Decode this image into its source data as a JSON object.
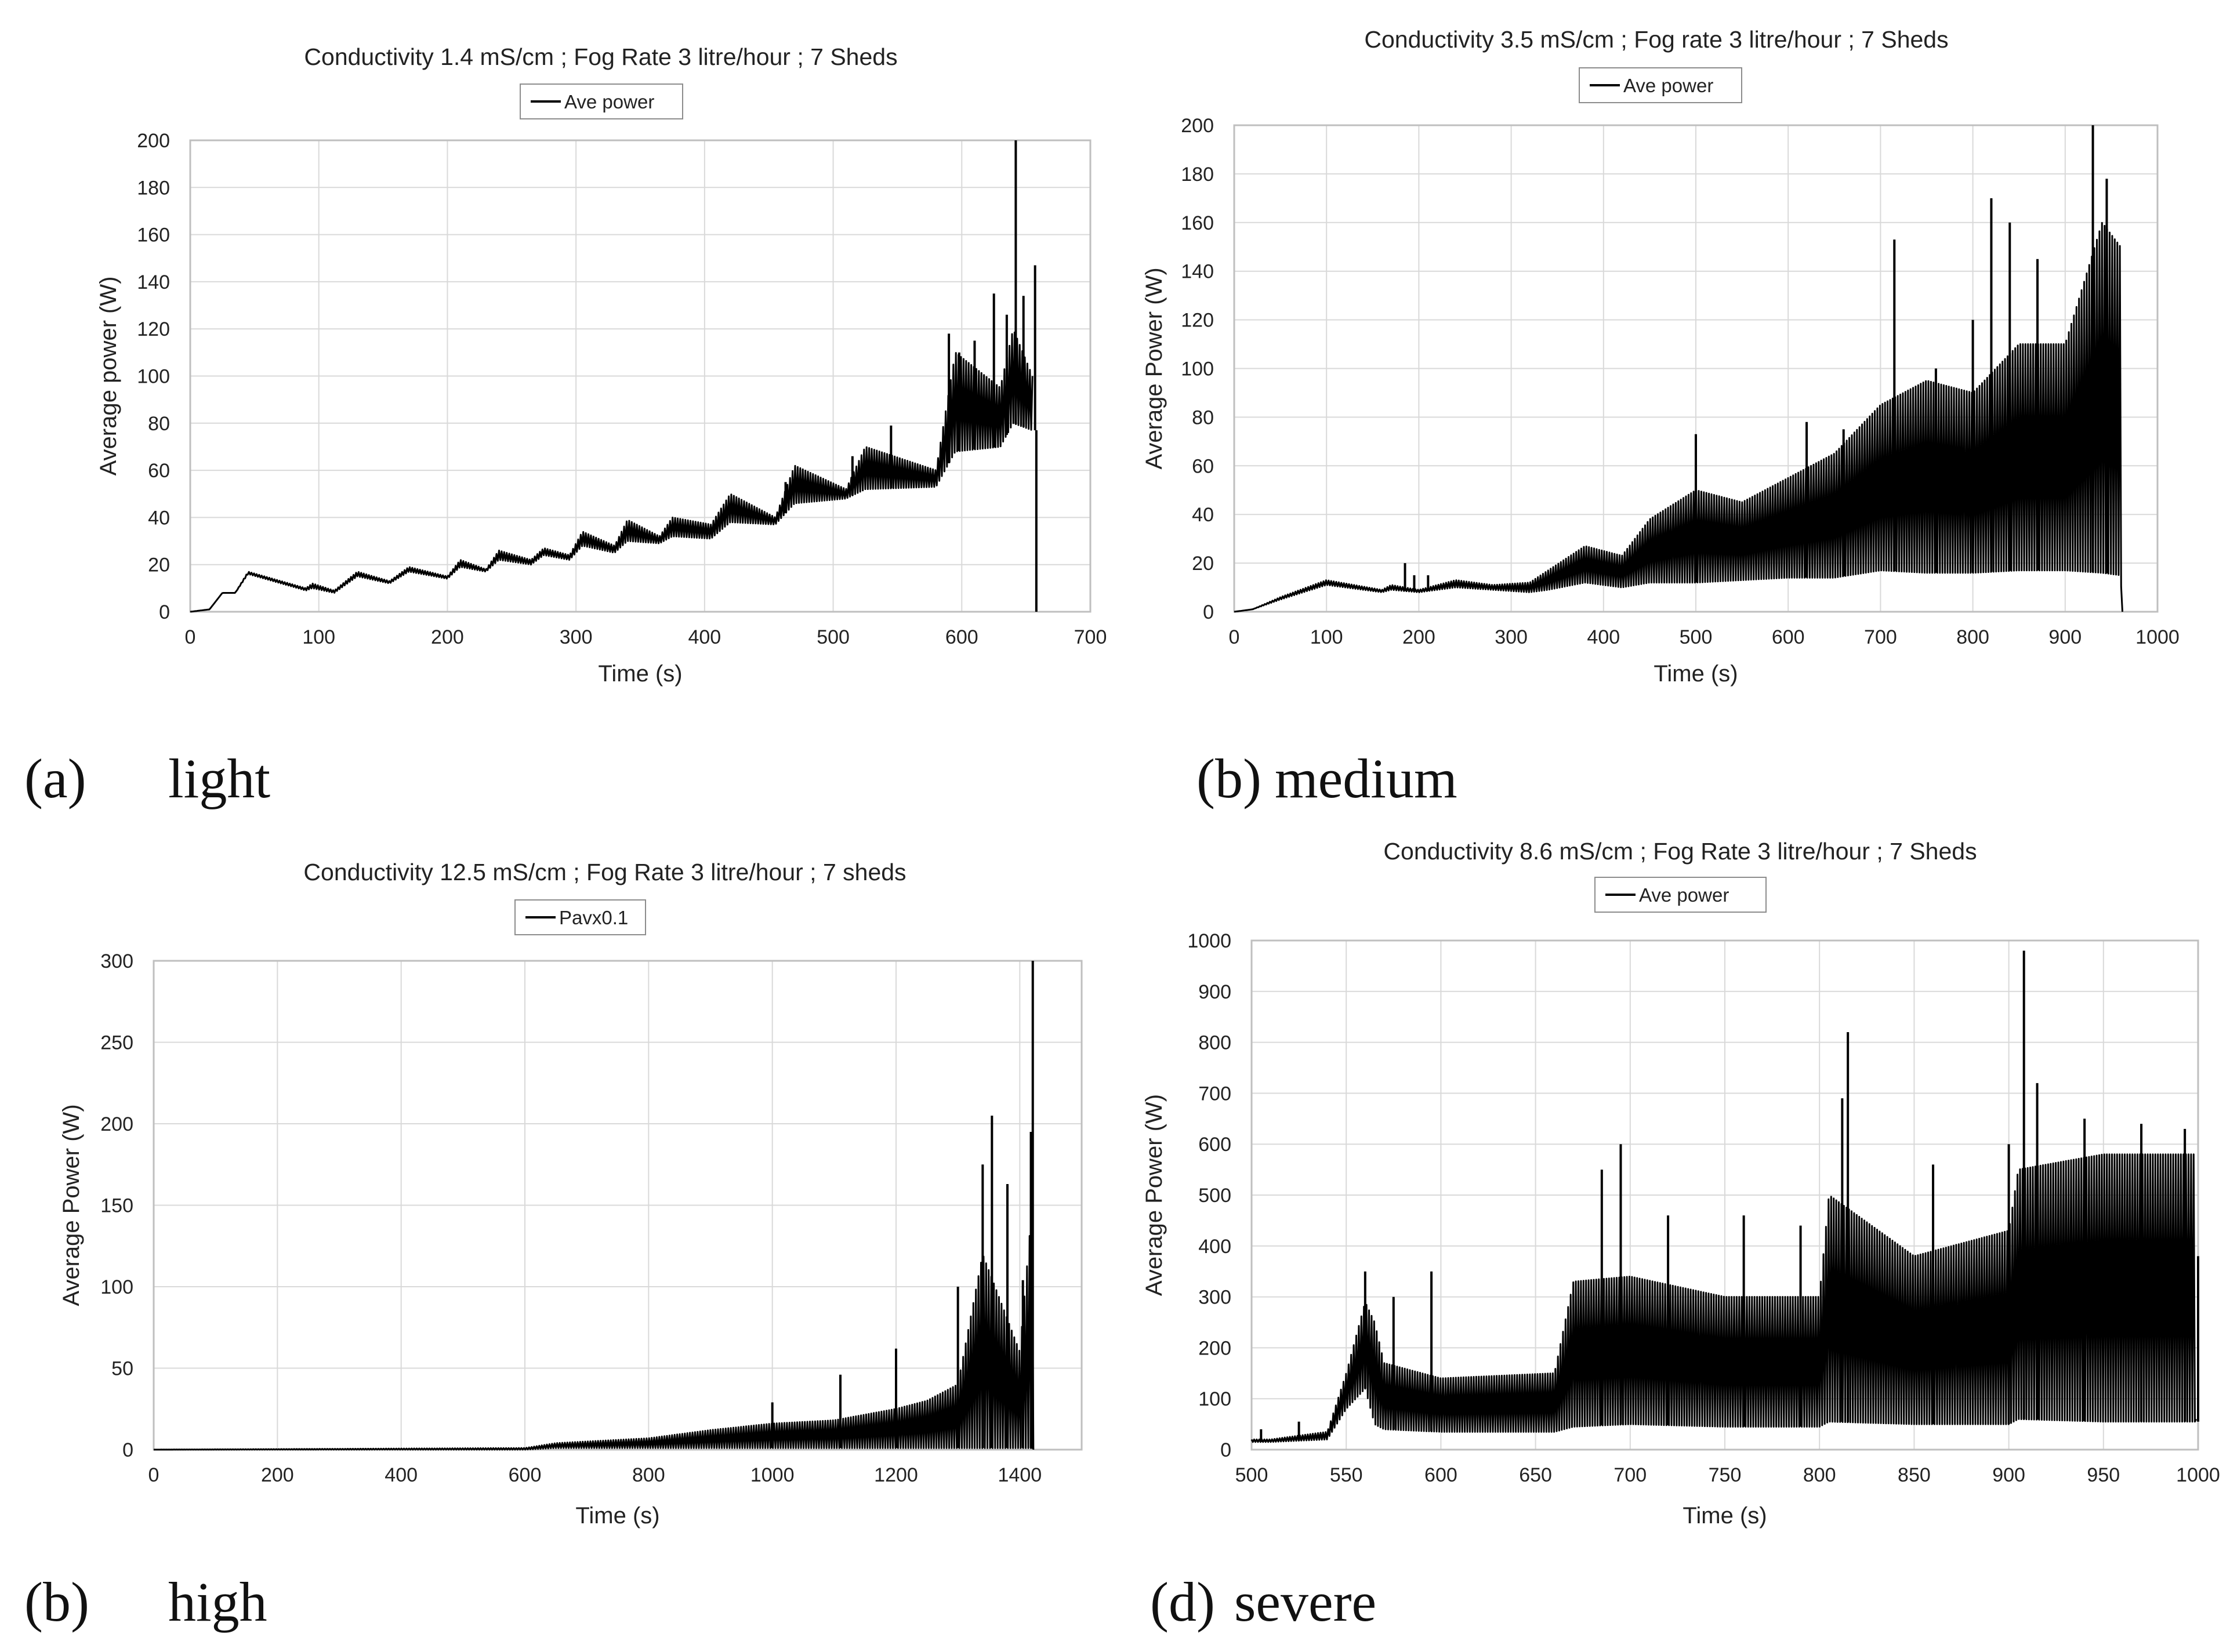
{
  "chart_data": [
    {
      "type": "line",
      "title": "Conductivity 1.4 mS/cm  ;  Fog Rate 3 litre/hour  ;  7 Sheds",
      "legend": "Ave power",
      "xlabel": "Time (s)",
      "ylabel": "Average power (W)",
      "xlim": [
        0,
        700
      ],
      "ylim": [
        0,
        200
      ],
      "xticks": [
        0,
        100,
        200,
        300,
        400,
        500,
        600,
        700
      ],
      "yticks": [
        0,
        20,
        40,
        60,
        80,
        100,
        120,
        140,
        160,
        180,
        200
      ],
      "caption": {
        "label": "(a)",
        "text": "light"
      },
      "series": [
        {
          "name": "Ave power",
          "envelope": {
            "x": [
              0,
              15,
              25,
              35,
              45,
              90,
              95,
              112,
              130,
              155,
              170,
              200,
              210,
              230,
              240,
              265,
              275,
              295,
              305,
              330,
              340,
              365,
              375,
              405,
              420,
              455,
              470,
              510,
              525,
              580,
              595,
              630,
              640,
              655
            ],
            "upper": [
              0,
              1,
              8,
              8,
              17,
              10,
              12,
              9,
              17,
              13,
              19,
              15,
              22,
              18,
              26,
              22,
              27,
              24,
              34,
              28,
              39,
              32,
              40,
              37,
              50,
              40,
              62,
              52,
              70,
              60,
              110,
              95,
              120,
              100
            ],
            "lower": [
              0,
              1,
              8,
              8,
              16,
              9,
              10,
              8,
              15,
              12,
              17,
              14,
              19,
              17,
              22,
              20,
              24,
              22,
              28,
              25,
              30,
              29,
              32,
              31,
              38,
              37,
              46,
              48,
              52,
              53,
              68,
              70,
              80,
              77
            ]
          },
          "spikes": [
            {
              "x": 463,
              "y": 55
            },
            {
              "x": 515,
              "y": 66
            },
            {
              "x": 545,
              "y": 79
            },
            {
              "x": 590,
              "y": 118
            },
            {
              "x": 598,
              "y": 110
            },
            {
              "x": 610,
              "y": 115
            },
            {
              "x": 625,
              "y": 135
            },
            {
              "x": 635,
              "y": 126
            },
            {
              "x": 642,
              "y": 200
            },
            {
              "x": 648,
              "y": 134
            },
            {
              "x": 657,
              "y": 147
            },
            {
              "x": 658,
              "y": 0
            }
          ]
        }
      ]
    },
    {
      "type": "line",
      "title": "Conductivity 3.5 mS/cm ; Fog rate 3 litre/hour ; 7 Sheds",
      "legend": "Ave power",
      "xlabel": "Time (s)",
      "ylabel": "Average Power (W)",
      "xlim": [
        0,
        1000
      ],
      "ylim": [
        0,
        200
      ],
      "xticks": [
        0,
        100,
        200,
        300,
        400,
        500,
        600,
        700,
        800,
        900,
        1000
      ],
      "yticks": [
        0,
        20,
        40,
        60,
        80,
        100,
        120,
        140,
        160,
        180,
        200
      ],
      "caption": {
        "label": "(b)",
        "text": "medium"
      },
      "series": [
        {
          "name": "Ave power",
          "envelope": {
            "x": [
              0,
              20,
              50,
              100,
              160,
              170,
              200,
              220,
              240,
              280,
              320,
              340,
              380,
              420,
              450,
              500,
              550,
              600,
              650,
              700,
              750,
              800,
              850,
              900,
              940,
              960,
              962
            ],
            "upper": [
              0,
              1,
              6,
              13,
              9,
              11,
              9,
              11,
              13,
              11,
              12,
              17,
              27,
              23,
              38,
              50,
              45,
              55,
              65,
              85,
              95,
              90,
              110,
              110,
              160,
              150,
              0
            ],
            "lower": [
              0,
              1,
              5,
              11,
              8,
              9,
              8,
              9,
              10,
              9,
              8,
              9,
              12,
              10,
              12,
              12,
              13,
              14,
              14,
              17,
              16,
              16,
              17,
              17,
              16,
              15,
              0
            ]
          },
          "spikes": [
            {
              "x": 185,
              "y": 20
            },
            {
              "x": 195,
              "y": 15
            },
            {
              "x": 210,
              "y": 15
            },
            {
              "x": 500,
              "y": 73
            },
            {
              "x": 620,
              "y": 78
            },
            {
              "x": 660,
              "y": 75
            },
            {
              "x": 715,
              "y": 153
            },
            {
              "x": 760,
              "y": 100
            },
            {
              "x": 800,
              "y": 120
            },
            {
              "x": 820,
              "y": 170
            },
            {
              "x": 840,
              "y": 160
            },
            {
              "x": 870,
              "y": 145
            },
            {
              "x": 930,
              "y": 200
            },
            {
              "x": 945,
              "y": 178
            }
          ]
        }
      ]
    },
    {
      "type": "line",
      "title": "Conductivity 12.5 mS/cm ; Fog Rate 3 litre/hour ; 7 sheds",
      "legend": "Pavx0.1",
      "xlabel": "Time (s)",
      "ylabel": "Average Power (W)",
      "xlim": [
        0,
        1500
      ],
      "ylim": [
        0,
        300
      ],
      "xticks": [
        0,
        200,
        400,
        600,
        800,
        1000,
        1200,
        1400
      ],
      "yticks": [
        0,
        50,
        100,
        150,
        200,
        250,
        300
      ],
      "caption": {
        "label": "(b)",
        "text": "high"
      },
      "series": [
        {
          "name": "Pavx0.1",
          "envelope": {
            "x": [
              0,
              600,
              650,
              700,
              800,
              900,
              1000,
              1100,
              1200,
              1250,
              1300,
              1340,
              1380,
              1400,
              1420,
              1422
            ],
            "upper": [
              0,
              1,
              4,
              5,
              7,
              12,
              16,
              18,
              25,
              30,
              40,
              120,
              80,
              60,
              150,
              0
            ],
            "lower": [
              0,
              0,
              1,
              1,
              1,
              1,
              1,
              1,
              1,
              1,
              1,
              1,
              1,
              1,
              1,
              0
            ]
          },
          "spikes": [
            {
              "x": 1000,
              "y": 29
            },
            {
              "x": 1110,
              "y": 46
            },
            {
              "x": 1200,
              "y": 62
            },
            {
              "x": 1300,
              "y": 100
            },
            {
              "x": 1340,
              "y": 175
            },
            {
              "x": 1355,
              "y": 205
            },
            {
              "x": 1380,
              "y": 163
            },
            {
              "x": 1405,
              "y": 104
            },
            {
              "x": 1418,
              "y": 195
            },
            {
              "x": 1421,
              "y": 300
            }
          ]
        }
      ]
    },
    {
      "type": "line",
      "title": "Conductivity 8.6 mS/cm  ;  Fog Rate 3 litre/hour  ;  7 Sheds",
      "legend": "Ave power",
      "xlabel": "Time (s)",
      "ylabel": "Average Power (W)",
      "xlim": [
        500,
        1000
      ],
      "ylim": [
        0,
        1000
      ],
      "xticks": [
        500,
        550,
        600,
        650,
        700,
        750,
        800,
        850,
        900,
        950,
        1000
      ],
      "yticks": [
        0,
        100,
        200,
        300,
        400,
        500,
        600,
        700,
        800,
        900,
        1000
      ],
      "caption": {
        "label": "(d)",
        "text": "severe"
      },
      "series": [
        {
          "name": "Ave power",
          "envelope": {
            "x": [
              500,
              505,
              510,
              540,
              550,
              560,
              565,
              570,
              600,
              660,
              670,
              700,
              750,
              800,
              805,
              850,
              900,
              905,
              950,
              998,
              999
            ],
            "upper": [
              20,
              20,
              20,
              35,
              150,
              290,
              250,
              170,
              140,
              150,
              330,
              340,
              300,
              300,
              500,
              380,
              430,
              550,
              580,
              580,
              60
            ],
            "lower": [
              15,
              15,
              15,
              20,
              80,
              120,
              50,
              40,
              35,
              35,
              45,
              50,
              45,
              45,
              55,
              50,
              50,
              60,
              55,
              55,
              55
            ]
          },
          "spikes": [
            {
              "x": 505,
              "y": 40
            },
            {
              "x": 525,
              "y": 55
            },
            {
              "x": 560,
              "y": 350
            },
            {
              "x": 575,
              "y": 300
            },
            {
              "x": 595,
              "y": 350
            },
            {
              "x": 685,
              "y": 550
            },
            {
              "x": 695,
              "y": 600
            },
            {
              "x": 720,
              "y": 460
            },
            {
              "x": 760,
              "y": 460
            },
            {
              "x": 790,
              "y": 440
            },
            {
              "x": 812,
              "y": 690
            },
            {
              "x": 815,
              "y": 820
            },
            {
              "x": 860,
              "y": 560
            },
            {
              "x": 900,
              "y": 600
            },
            {
              "x": 908,
              "y": 980
            },
            {
              "x": 915,
              "y": 720
            },
            {
              "x": 940,
              "y": 650
            },
            {
              "x": 970,
              "y": 640
            },
            {
              "x": 993,
              "y": 630
            },
            {
              "x": 1000,
              "y": 380
            }
          ]
        }
      ]
    }
  ]
}
